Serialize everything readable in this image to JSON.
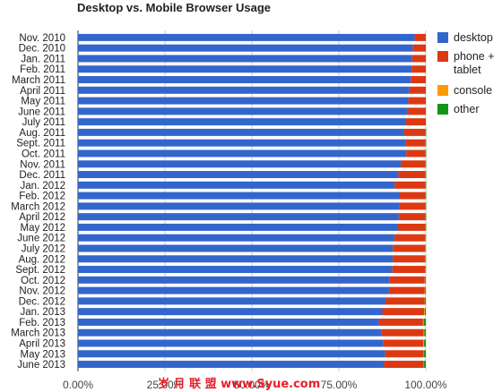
{
  "chart_data": {
    "type": "bar",
    "orientation": "horizontal",
    "stacked": true,
    "percent": true,
    "title": "Desktop vs. Mobile Browser Usage",
    "xlabel": "",
    "ylabel": "",
    "xlim": [
      0,
      100
    ],
    "x_ticks": [
      "0.00%",
      "25.00%",
      "50.00%",
      "75.00%",
      "100.00%"
    ],
    "grid": true,
    "legend_position": "right",
    "categories": [
      "Nov. 2010",
      "Dec. 2010",
      "Jan. 2011",
      "Feb. 2011",
      "March 2011",
      "April 2011",
      "May 2011",
      "June 2011",
      "July 2011",
      "Aug. 2011",
      "Sept. 2011",
      "Oct. 2011",
      "Nov. 2011",
      "Dec. 2011",
      "Jan. 2012",
      "Feb. 2012",
      "March 2012",
      "April 2012",
      "May 2012",
      "June 2012",
      "July 2012",
      "Aug. 2012",
      "Sept. 2012",
      "Oct. 2012",
      "Nov. 2012",
      "Dec. 2012",
      "Jan. 2013",
      "Feb. 2013",
      "March 2013",
      "April 2013",
      "May 2013",
      "June 2013"
    ],
    "series": [
      {
        "name": "desktop",
        "color": "#3366cc",
        "values": [
          96.8,
          96.3,
          96.1,
          95.9,
          95.7,
          95.3,
          95.0,
          94.6,
          94.2,
          93.7,
          94.1,
          94.4,
          92.8,
          92.1,
          91.0,
          92.4,
          92.5,
          92.2,
          92.0,
          91.0,
          90.5,
          90.5,
          90.4,
          89.5,
          89.4,
          88.4,
          87.5,
          86.5,
          87.3,
          87.8,
          88.3,
          88.0
        ]
      },
      {
        "name": "phone + tablet",
        "color": "#dc3912",
        "values": [
          3.2,
          3.7,
          3.9,
          4.1,
          4.3,
          4.7,
          5.0,
          5.4,
          5.8,
          6.2,
          5.8,
          5.5,
          7.1,
          7.8,
          8.9,
          7.5,
          7.4,
          7.7,
          7.9,
          8.8,
          9.3,
          9.3,
          9.4,
          10.2,
          10.3,
          11.2,
          12.0,
          12.7,
          12.1,
          11.5,
          11.1,
          11.4
        ]
      },
      {
        "name": "console",
        "color": "#ff9900",
        "values": [
          0,
          0,
          0,
          0,
          0,
          0,
          0,
          0,
          0,
          0.05,
          0.05,
          0.05,
          0.05,
          0.05,
          0.05,
          0.05,
          0.05,
          0.05,
          0.05,
          0.1,
          0.1,
          0.1,
          0.1,
          0.1,
          0.1,
          0.1,
          0.2,
          0.2,
          0.2,
          0.2,
          0.1,
          0.1
        ]
      },
      {
        "name": "other",
        "color": "#109618",
        "values": [
          0,
          0,
          0,
          0,
          0,
          0,
          0,
          0,
          0,
          0.05,
          0.05,
          0.05,
          0.05,
          0.05,
          0.05,
          0.05,
          0.05,
          0.05,
          0.05,
          0.1,
          0.1,
          0.1,
          0.1,
          0.2,
          0.2,
          0.3,
          0.3,
          0.6,
          0.4,
          0.5,
          0.5,
          0.5
        ]
      }
    ]
  },
  "watermark": "岁 月 联 盟  www.Syue.com"
}
